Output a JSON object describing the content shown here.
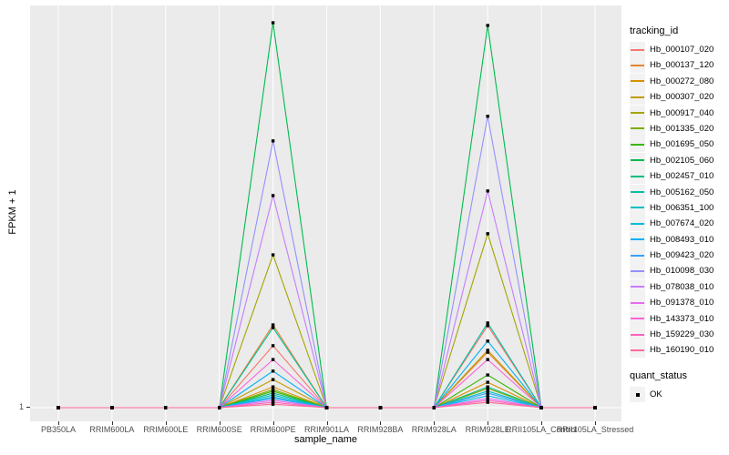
{
  "figure": {
    "y_axis": {
      "title": "FPKM + 1",
      "tick_labels": [
        "1"
      ]
    },
    "x_axis": {
      "title": "sample_name"
    },
    "legend": {
      "tracking_title": "tracking_id",
      "quant_title": "quant_status",
      "quant_entries": [
        {
          "label": "OK",
          "marker": "black-square"
        }
      ]
    }
  },
  "chart_data": {
    "type": "line",
    "title": "",
    "xlabel": "sample_name",
    "ylabel": "FPKM + 1",
    "legend_position": "right",
    "panel_background": "#EBEBEB",
    "grid_color": "#FFFFFF",
    "point_shape": "filled square",
    "point_color": "#000000",
    "y_tick_labels": [
      "1"
    ],
    "y_value_note": "y axis labeled only at baseline '1'; series values are estimated fractions of panel height above the baseline (0 = FPKM+1 = 1, 1 = tallest peak)",
    "categories": [
      "PB350LA",
      "RRIM600LA",
      "RRIM600LE",
      "RRIM600SE",
      "RRIM600PE",
      "RRIM901LA",
      "RRIM928BA",
      "RRIM928LA",
      "RRIM928LE",
      "RRII105LA_Control",
      "RRII105LA_Stressed"
    ],
    "series": [
      {
        "name": "Hb_000107_020",
        "color": "#F8766D",
        "values": [
          0,
          0,
          0,
          0,
          0.161,
          0,
          0,
          0,
          0.213,
          0,
          0
        ]
      },
      {
        "name": "Hb_000137_120",
        "color": "#EA8331",
        "values": [
          0,
          0,
          0,
          0,
          0.215,
          0,
          0,
          0,
          0.144,
          0,
          0
        ]
      },
      {
        "name": "Hb_000272_080",
        "color": "#D89000",
        "values": [
          0,
          0,
          0,
          0,
          0.054,
          0,
          0,
          0,
          0.066,
          0,
          0
        ]
      },
      {
        "name": "Hb_000307_020",
        "color": "#C09B00",
        "values": [
          0,
          0,
          0,
          0,
          0.073,
          0,
          0,
          0,
          0.149,
          0,
          0
        ]
      },
      {
        "name": "Hb_000917_040",
        "color": "#A3A500",
        "values": [
          0,
          0,
          0,
          0,
          0.397,
          0,
          0,
          0,
          0.452,
          0,
          0
        ]
      },
      {
        "name": "Hb_001335_020",
        "color": "#7CAE00",
        "values": [
          0,
          0,
          0,
          0,
          0.047,
          0,
          0,
          0,
          0.05,
          0,
          0
        ]
      },
      {
        "name": "Hb_001695_050",
        "color": "#39B600",
        "values": [
          0,
          0,
          0,
          0,
          0.043,
          0,
          0,
          0,
          0.085,
          0,
          0
        ]
      },
      {
        "name": "Hb_002105_060",
        "color": "#00BB4E",
        "values": [
          0,
          0,
          0,
          0,
          1.0,
          0,
          0,
          0,
          0.993,
          0,
          0
        ]
      },
      {
        "name": "Hb_002457_010",
        "color": "#00BF7D",
        "values": [
          0,
          0,
          0,
          0,
          0.038,
          0,
          0,
          0,
          0.054,
          0,
          0
        ]
      },
      {
        "name": "Hb_005162_050",
        "color": "#00C1A3",
        "values": [
          0,
          0,
          0,
          0,
          0.208,
          0,
          0,
          0,
          0.22,
          0,
          0
        ]
      },
      {
        "name": "Hb_006351_100",
        "color": "#00BFC4",
        "values": [
          0,
          0,
          0,
          0,
          0.033,
          0,
          0,
          0,
          0.043,
          0,
          0
        ]
      },
      {
        "name": "Hb_007674_020",
        "color": "#00BADE",
        "values": [
          0,
          0,
          0,
          0,
          0.028,
          0,
          0,
          0,
          0.031,
          0,
          0
        ]
      },
      {
        "name": "Hb_008493_010",
        "color": "#00B0F6",
        "values": [
          0,
          0,
          0,
          0,
          0.095,
          0,
          0,
          0,
          0.173,
          0,
          0
        ]
      },
      {
        "name": "Hb_009423_020",
        "color": "#35A2FF",
        "values": [
          0,
          0,
          0,
          0,
          0.024,
          0,
          0,
          0,
          0.038,
          0,
          0
        ]
      },
      {
        "name": "Hb_010098_030",
        "color": "#9590FF",
        "values": [
          0,
          0,
          0,
          0,
          0.693,
          0,
          0,
          0,
          0.757,
          0,
          0
        ]
      },
      {
        "name": "Hb_078038_010",
        "color": "#C77CFF",
        "values": [
          0,
          0,
          0,
          0,
          0.551,
          0,
          0,
          0,
          0.563,
          0,
          0
        ]
      },
      {
        "name": "Hb_091378_010",
        "color": "#E76BF3",
        "values": [
          0,
          0,
          0,
          0,
          0.019,
          0,
          0,
          0,
          0.024,
          0,
          0
        ]
      },
      {
        "name": "Hb_143373_010",
        "color": "#FA62DB",
        "values": [
          0,
          0,
          0,
          0,
          0.125,
          0,
          0,
          0,
          0.125,
          0,
          0
        ]
      },
      {
        "name": "Hb_159229_030",
        "color": "#FF62BC",
        "values": [
          0,
          0,
          0,
          0,
          0.014,
          0,
          0,
          0,
          0.019,
          0,
          0
        ]
      },
      {
        "name": "Hb_160190_010",
        "color": "#FF6A98",
        "values": [
          0,
          0,
          0,
          0,
          0.009,
          0,
          0,
          0,
          0.014,
          0,
          0
        ]
      }
    ]
  }
}
